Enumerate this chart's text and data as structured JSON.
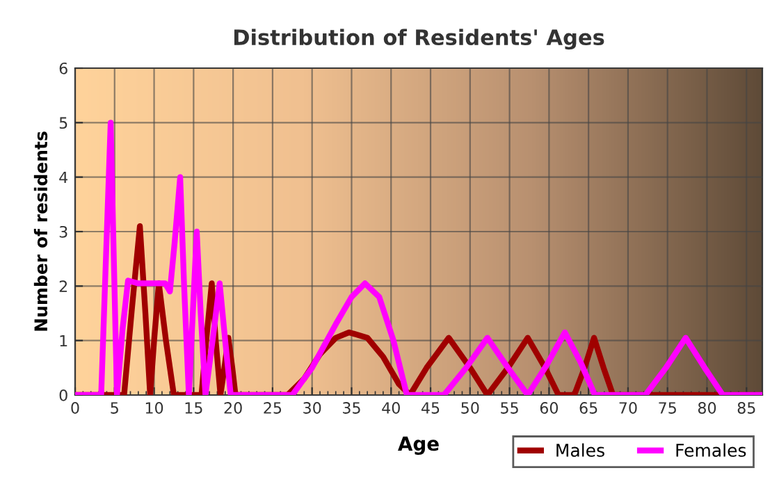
{
  "chart_data": {
    "type": "line",
    "title": "Distribution of Residents' Ages",
    "xlabel": "Age",
    "ylabel": "Number of residents",
    "xlim": [
      0,
      87
    ],
    "xticks": [
      0,
      5,
      10,
      15,
      20,
      25,
      30,
      35,
      40,
      45,
      50,
      55,
      60,
      65,
      70,
      75,
      80,
      85
    ],
    "ylim": [
      0,
      6
    ],
    "yticks": [
      0,
      1,
      2,
      3,
      4,
      5,
      6
    ],
    "grid": true,
    "legend": "bottom right",
    "marker": "none",
    "line_style": "solid",
    "series": [
      {
        "name": "Males",
        "color": "#a00000",
        "x": [
          0,
          6.2,
          7.2,
          8.2,
          8.9,
          9.5,
          10.0,
          10.6,
          11.5,
          12.5,
          16,
          16.6,
          17.3,
          17.8,
          18.4,
          18.9,
          19.4,
          19.9,
          20.3,
          24,
          26.9,
          29,
          31,
          33,
          34.7,
          37,
          39,
          41,
          42.4,
          44.5,
          47.3,
          50,
          52.2,
          54.8,
          57.3,
          59.5,
          61.2,
          63.2,
          64.5,
          65.7,
          66.9,
          68.1,
          87
        ],
        "values": [
          0,
          0,
          1.6,
          3.1,
          1.5,
          0,
          1.0,
          2.05,
          1.0,
          0,
          0,
          1.0,
          2.05,
          1.0,
          0,
          0.5,
          1.05,
          0.5,
          0,
          0,
          0,
          0.3,
          0.75,
          1.05,
          1.15,
          1.05,
          0.7,
          0.2,
          0,
          0.5,
          1.05,
          0.5,
          0,
          0.5,
          1.05,
          0.5,
          0,
          0,
          0.5,
          1.05,
          0.5,
          0,
          0
        ]
      },
      {
        "name": "Females",
        "color": "#ff00ff",
        "x": [
          0,
          3.3,
          3.9,
          4.5,
          4.9,
          5.3,
          6.0,
          6.7,
          8,
          11.4,
          12,
          12.6,
          13.3,
          13.8,
          14.4,
          14.9,
          15.4,
          15.9,
          16.5,
          17.4,
          18.3,
          19.0,
          19.7,
          27.5,
          30,
          33,
          35,
          36.7,
          38.5,
          40.3,
          42,
          46.7,
          49.5,
          52.2,
          54.8,
          57.3,
          59.7,
          62,
          64,
          65.8,
          72.2,
          74.8,
          77.3,
          79.7,
          82,
          87
        ],
        "values": [
          0,
          0,
          2.5,
          5,
          2.5,
          0,
          1.2,
          2.1,
          2.05,
          2.05,
          1.9,
          2.8,
          4,
          2,
          0,
          1.5,
          3,
          1.5,
          0,
          1.0,
          2.05,
          1.0,
          0,
          0,
          0.5,
          1.3,
          1.8,
          2.05,
          1.8,
          1.0,
          0,
          0,
          0.5,
          1.05,
          0.5,
          0,
          0.55,
          1.15,
          0.6,
          0,
          0,
          0.5,
          1.05,
          0.5,
          0,
          0
        ]
      }
    ]
  }
}
